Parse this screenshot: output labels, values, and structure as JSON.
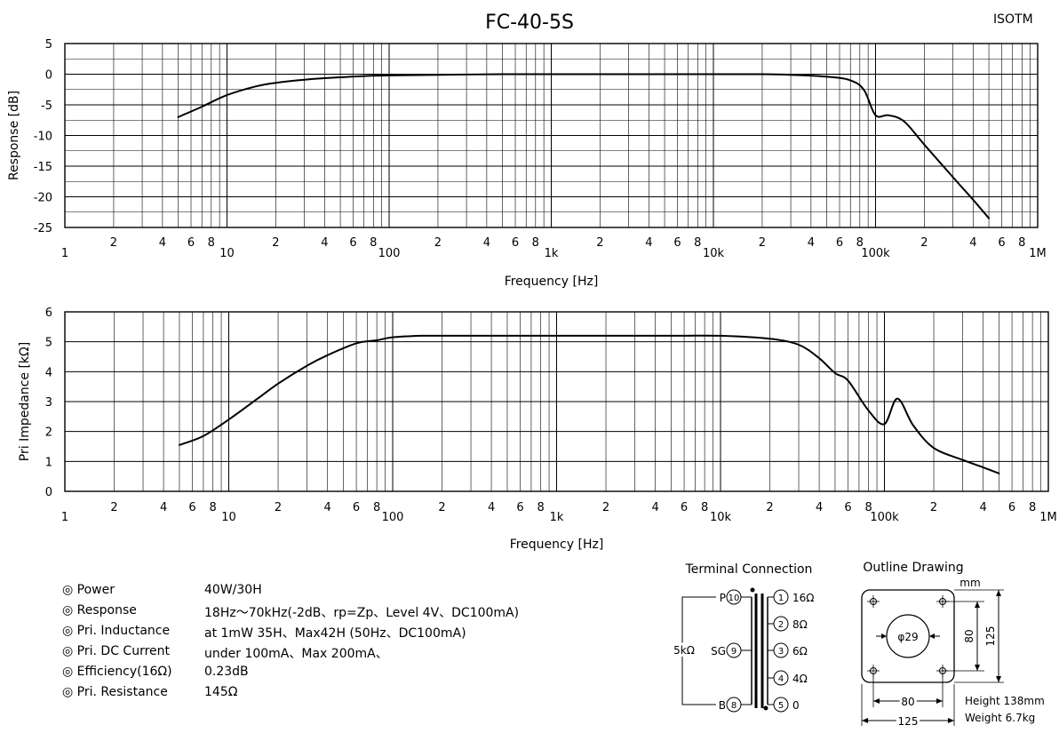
{
  "header": {
    "title": "FC-40-5S",
    "brand": "ISOTM"
  },
  "chart_data": [
    {
      "type": "line",
      "title": "",
      "xlabel": "Frequency [Hz]",
      "ylabel": "Response [dB]",
      "xscale": "log",
      "xlim": [
        1,
        1000000
      ],
      "ylim": [
        -25,
        5
      ],
      "yticks": [
        5,
        0,
        -5,
        -10,
        -15,
        -20,
        -25
      ],
      "grid": true,
      "series": [
        {
          "x": [
            5,
            7,
            10,
            15,
            20,
            30,
            50,
            70,
            100,
            200,
            500,
            1000,
            5000,
            10000,
            20000,
            30000,
            50000,
            70000,
            85000,
            100000,
            120000,
            150000,
            200000,
            300000,
            400000,
            500000
          ],
          "values": [
            -7,
            -5.3,
            -3.4,
            -2,
            -1.4,
            -0.9,
            -0.5,
            -0.3,
            -0.2,
            -0.1,
            0,
            0,
            0,
            0,
            0,
            -0.1,
            -0.4,
            -1,
            -2.6,
            -6.7,
            -6.7,
            -7.7,
            -11.5,
            -16.8,
            -20.5,
            -23.5
          ]
        }
      ]
    },
    {
      "type": "line",
      "title": "",
      "xlabel": "Frequency [Hz]",
      "ylabel": "Pri Impedance [kΩ]",
      "xscale": "log",
      "xlim": [
        1,
        1000000
      ],
      "ylim": [
        0,
        6
      ],
      "yticks": [
        6,
        5,
        4,
        3,
        2,
        1,
        0
      ],
      "grid": true,
      "series": [
        {
          "x": [
            5,
            7,
            10,
            15,
            20,
            30,
            40,
            60,
            80,
            100,
            150,
            200,
            500,
            1000,
            5000,
            10000,
            20000,
            30000,
            40000,
            50000,
            60000,
            80000,
            100000,
            120000,
            150000,
            200000,
            300000,
            400000,
            500000
          ],
          "values": [
            1.55,
            1.85,
            2.4,
            3.1,
            3.6,
            4.2,
            4.55,
            4.95,
            5.05,
            5.15,
            5.2,
            5.2,
            5.2,
            5.2,
            5.2,
            5.2,
            5.1,
            4.9,
            4.45,
            3.95,
            3.7,
            2.7,
            2.25,
            3.1,
            2.2,
            1.45,
            1.05,
            0.8,
            0.6
          ]
        }
      ]
    }
  ],
  "axis": {
    "decade_labels": [
      "1",
      "10",
      "100",
      "1k",
      "10k",
      "100k",
      "1M"
    ],
    "minor_labels": [
      "2",
      "4",
      "6",
      "8"
    ],
    "xlabel": "Frequency [Hz]",
    "top_ylabel": "Response [dB]",
    "bottom_ylabel": "Pri Impedance [kΩ]"
  },
  "specs": [
    {
      "label": "◎ Power",
      "value": "40W/30H"
    },
    {
      "label": "◎ Response",
      "value": "18Hz〜70kHz(-2dB、rp=Zp、Level 4V、DC100mA)"
    },
    {
      "label": "◎ Pri. Inductance",
      "value": "at 1mW 35H、Max42H (50Hz、DC100mA)"
    },
    {
      "label": "◎ Pri. DC Current",
      "value": "under 100mA、Max 200mA、"
    },
    {
      "label": "◎ Efficiency(16Ω)",
      "value": "0.23dB"
    },
    {
      "label": "◎ Pri. Resistance",
      "value": "145Ω"
    }
  ],
  "terminal": {
    "heading": "Terminal Connection",
    "primary": [
      {
        "label": "P",
        "pin": "10"
      },
      {
        "label": "SG",
        "pin": "9"
      },
      {
        "label": "B",
        "pin": "8"
      }
    ],
    "primary_impedance": "5kΩ",
    "secondary": [
      {
        "pin": "1",
        "label": "16Ω"
      },
      {
        "pin": "2",
        "label": "8Ω"
      },
      {
        "pin": "3",
        "label": "6Ω"
      },
      {
        "pin": "4",
        "label": "4Ω"
      },
      {
        "pin": "5",
        "label": "0"
      }
    ]
  },
  "outline": {
    "heading": "Outline Drawing",
    "unit": "mm",
    "hole": "φ29",
    "dim_inner_v": "80",
    "dim_outer_v": "125",
    "dim_inner_h": "80",
    "dim_outer_h": "125",
    "height": "Height 138mm",
    "weight": "Weight 6.7kg"
  }
}
